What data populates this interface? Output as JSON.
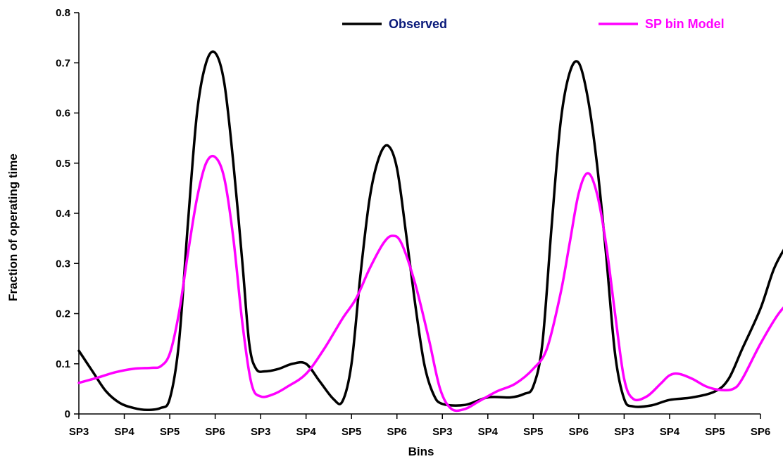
{
  "chart_data": {
    "type": "line",
    "title": "",
    "xlabel": "Bins",
    "ylabel": "Fraction of operating time",
    "ylim": [
      0,
      0.8
    ],
    "yticks": [
      "0",
      "0.1",
      "0.2",
      "0.3",
      "0.4",
      "0.5",
      "0.6",
      "0.7",
      "0.8"
    ],
    "categories": [
      "SP3",
      "SP4",
      "SP5",
      "SP6",
      "SP3",
      "SP4",
      "SP5",
      "SP6",
      "SP3",
      "SP4",
      "SP5",
      "SP6",
      "SP3",
      "SP4",
      "SP5",
      "SP6"
    ],
    "grid": false,
    "legend": "top",
    "series": [
      {
        "name": "Observed",
        "color": "#000000",
        "points": [
          [
            0,
            0.126
          ],
          [
            0.3,
            0.085
          ],
          [
            0.6,
            0.045
          ],
          [
            0.9,
            0.022
          ],
          [
            1.2,
            0.012
          ],
          [
            1.5,
            0.008
          ],
          [
            1.8,
            0.012
          ],
          [
            2.0,
            0.03
          ],
          [
            2.2,
            0.14
          ],
          [
            2.4,
            0.38
          ],
          [
            2.6,
            0.6
          ],
          [
            2.8,
            0.7
          ],
          [
            3.0,
            0.72
          ],
          [
            3.2,
            0.66
          ],
          [
            3.4,
            0.5
          ],
          [
            3.6,
            0.3
          ],
          [
            3.75,
            0.14
          ],
          [
            3.9,
            0.09
          ],
          [
            4.1,
            0.085
          ],
          [
            4.4,
            0.09
          ],
          [
            4.7,
            0.1
          ],
          [
            5.0,
            0.1
          ],
          [
            5.3,
            0.065
          ],
          [
            5.6,
            0.03
          ],
          [
            5.8,
            0.025
          ],
          [
            6.0,
            0.1
          ],
          [
            6.2,
            0.28
          ],
          [
            6.4,
            0.43
          ],
          [
            6.6,
            0.51
          ],
          [
            6.8,
            0.535
          ],
          [
            7.0,
            0.49
          ],
          [
            7.2,
            0.36
          ],
          [
            7.4,
            0.22
          ],
          [
            7.6,
            0.1
          ],
          [
            7.8,
            0.04
          ],
          [
            8.0,
            0.02
          ],
          [
            8.5,
            0.018
          ],
          [
            9.0,
            0.033
          ],
          [
            9.5,
            0.033
          ],
          [
            9.8,
            0.04
          ],
          [
            10.0,
            0.055
          ],
          [
            10.2,
            0.14
          ],
          [
            10.4,
            0.37
          ],
          [
            10.6,
            0.58
          ],
          [
            10.8,
            0.68
          ],
          [
            11.0,
            0.7
          ],
          [
            11.2,
            0.63
          ],
          [
            11.4,
            0.5
          ],
          [
            11.6,
            0.32
          ],
          [
            11.8,
            0.12
          ],
          [
            12.0,
            0.03
          ],
          [
            12.2,
            0.015
          ],
          [
            12.6,
            0.017
          ],
          [
            13.0,
            0.028
          ],
          [
            13.5,
            0.033
          ],
          [
            14.0,
            0.045
          ],
          [
            14.3,
            0.07
          ],
          [
            14.6,
            0.13
          ],
          [
            15.0,
            0.21
          ],
          [
            15.3,
            0.29
          ],
          [
            15.6,
            0.34
          ],
          [
            15.8,
            0.365
          ]
        ]
      },
      {
        "name": "SP bin Model",
        "color": "#ff00ff",
        "points": [
          [
            0,
            0.062
          ],
          [
            0.4,
            0.072
          ],
          [
            0.8,
            0.083
          ],
          [
            1.2,
            0.09
          ],
          [
            1.6,
            0.092
          ],
          [
            1.8,
            0.095
          ],
          [
            2.0,
            0.12
          ],
          [
            2.2,
            0.2
          ],
          [
            2.4,
            0.32
          ],
          [
            2.6,
            0.43
          ],
          [
            2.8,
            0.5
          ],
          [
            3.0,
            0.512
          ],
          [
            3.2,
            0.47
          ],
          [
            3.4,
            0.35
          ],
          [
            3.6,
            0.18
          ],
          [
            3.8,
            0.06
          ],
          [
            4.0,
            0.035
          ],
          [
            4.3,
            0.04
          ],
          [
            4.6,
            0.055
          ],
          [
            5.0,
            0.08
          ],
          [
            5.4,
            0.13
          ],
          [
            5.8,
            0.19
          ],
          [
            6.1,
            0.23
          ],
          [
            6.4,
            0.29
          ],
          [
            6.7,
            0.34
          ],
          [
            6.9,
            0.355
          ],
          [
            7.1,
            0.34
          ],
          [
            7.4,
            0.26
          ],
          [
            7.7,
            0.15
          ],
          [
            7.95,
            0.05
          ],
          [
            8.2,
            0.01
          ],
          [
            8.5,
            0.01
          ],
          [
            8.8,
            0.025
          ],
          [
            9.2,
            0.045
          ],
          [
            9.6,
            0.06
          ],
          [
            10.0,
            0.09
          ],
          [
            10.3,
            0.13
          ],
          [
            10.6,
            0.24
          ],
          [
            10.8,
            0.34
          ],
          [
            11.0,
            0.44
          ],
          [
            11.2,
            0.48
          ],
          [
            11.4,
            0.44
          ],
          [
            11.6,
            0.34
          ],
          [
            11.8,
            0.2
          ],
          [
            12.0,
            0.07
          ],
          [
            12.2,
            0.03
          ],
          [
            12.5,
            0.035
          ],
          [
            12.8,
            0.06
          ],
          [
            13.0,
            0.077
          ],
          [
            13.2,
            0.08
          ],
          [
            13.5,
            0.07
          ],
          [
            13.8,
            0.055
          ],
          [
            14.1,
            0.048
          ],
          [
            14.4,
            0.05
          ],
          [
            14.6,
            0.07
          ],
          [
            15.0,
            0.14
          ],
          [
            15.4,
            0.2
          ],
          [
            15.8,
            0.24
          ]
        ]
      }
    ]
  }
}
